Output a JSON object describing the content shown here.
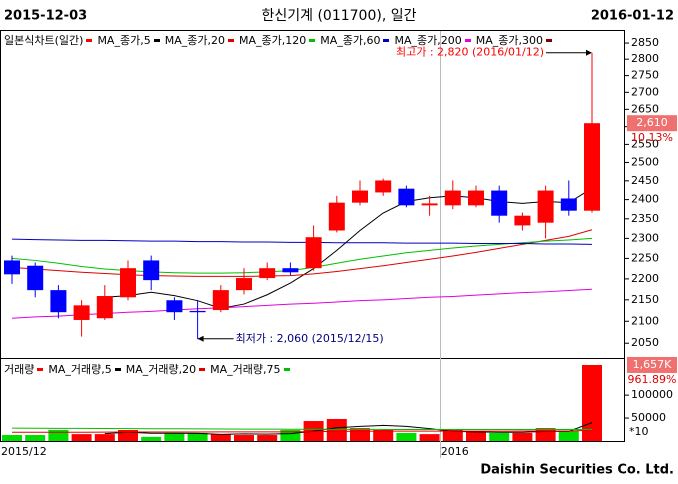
{
  "header": {
    "start_date": "2015-12-03",
    "title": "한신기계 (011700), 일간",
    "end_date": "2016-01-12"
  },
  "footer": "Daishin Securities Co. Ltd.",
  "chart_data": [
    {
      "type": "candlestick",
      "name": "일본식차트(일간)",
      "legend_color": "#ff0000",
      "up_color": "#ff0000",
      "down_color": "#0000ff",
      "categories": [
        "2015/12",
        null,
        null,
        null,
        null,
        null,
        null,
        null,
        null,
        null,
        null,
        null,
        null,
        null,
        null,
        null,
        null,
        null,
        null,
        "2016",
        null,
        null,
        null,
        null,
        null,
        null
      ],
      "open": [
        2245,
        2232,
        2173,
        2103,
        2107,
        2156,
        2245,
        2149,
        2124,
        2126,
        2173,
        2202,
        2226,
        2226,
        2320,
        2392,
        2419,
        2429,
        2385,
        2385,
        2385,
        2424,
        2333,
        2340,
        2403,
        2371
      ],
      "high": [
        2257,
        2240,
        2185,
        2149,
        2185,
        2245,
        2257,
        2156,
        2149,
        2185,
        2226,
        2240,
        2240,
        2333,
        2410,
        2451,
        2456,
        2437,
        2410,
        2451,
        2437,
        2437,
        2366,
        2437,
        2451,
        2820
      ],
      "low": [
        2188,
        2156,
        2107,
        2065,
        2103,
        2149,
        2173,
        2103,
        2060,
        2121,
        2163,
        2197,
        2209,
        2220,
        2315,
        2385,
        2410,
        2380,
        2358,
        2375,
        2380,
        2340,
        2320,
        2300,
        2358,
        2366
      ],
      "close": [
        2211,
        2173,
        2121,
        2137,
        2159,
        2226,
        2197,
        2121,
        2121,
        2173,
        2202,
        2226,
        2216,
        2303,
        2392,
        2424,
        2451,
        2385,
        2390,
        2424,
        2424,
        2358,
        2358,
        2424,
        2371,
        2610
      ],
      "series": [
        {
          "name": "MA_종가,5",
          "color": "#000000",
          "values": [
            null,
            null,
            null,
            null,
            2156,
            2160,
            2168,
            2160,
            2148,
            2130,
            2140,
            2162,
            2190,
            2225,
            2270,
            2320,
            2365,
            2395,
            2405,
            2410,
            2405,
            2395,
            2390,
            2395,
            2392,
            2430
          ]
        },
        {
          "name": "MA_종가,20",
          "color": "#e00000",
          "values": [
            2228,
            2224,
            2220,
            2216,
            2213,
            2210,
            2208,
            2207,
            2206,
            2206,
            2206,
            2207,
            2208,
            2212,
            2218,
            2225,
            2232,
            2240,
            2248,
            2256,
            2265,
            2275,
            2285,
            2295,
            2305,
            2322
          ]
        },
        {
          "name": "MA_종가,120",
          "color": "#00c000",
          "values": [
            2250,
            2245,
            2238,
            2230,
            2224,
            2220,
            2217,
            2215,
            2214,
            2214,
            2215,
            2217,
            2220,
            2228,
            2238,
            2248,
            2256,
            2264,
            2270,
            2276,
            2281,
            2285,
            2289,
            2293,
            2296,
            2300
          ]
        },
        {
          "name": "MA_종가,60",
          "color": "#0000c0",
          "values": [
            2298,
            2297,
            2296,
            2295,
            2295,
            2294,
            2293,
            2293,
            2292,
            2292,
            2291,
            2291,
            2290,
            2290,
            2289,
            2289,
            2289,
            2288,
            2288,
            2288,
            2287,
            2287,
            2287,
            2286,
            2286,
            2285
          ]
        },
        {
          "name": "MA_종가,200",
          "color": "#e000e0",
          "values": [
            2107,
            2110,
            2112,
            2115,
            2118,
            2121,
            2123,
            2126,
            2129,
            2131,
            2134,
            2137,
            2140,
            2142,
            2145,
            2148,
            2150,
            2153,
            2156,
            2158,
            2161,
            2164,
            2167,
            2169,
            2172,
            2175
          ]
        },
        {
          "name": "MA_종가,300",
          "color": "#800000",
          "values": [
            null,
            null,
            null,
            null,
            null,
            null,
            null,
            null,
            null,
            null,
            null,
            null,
            null,
            null,
            null,
            null,
            null,
            null,
            null,
            null,
            null,
            null,
            null,
            null,
            null,
            null
          ]
        }
      ],
      "log": true,
      "ylim": [
        2017,
        2888
      ],
      "yticks": [
        2050,
        2100,
        2150,
        2200,
        2250,
        2300,
        2350,
        2400,
        2450,
        2500,
        2550,
        2600,
        2650,
        2700,
        2750,
        2800,
        2850
      ],
      "last_price": {
        "value": 2610,
        "label": "2,610"
      },
      "change_label": "10.13%",
      "annotations": [
        {
          "text": "최고가 : 2,820 (2016/01/12)",
          "value": 2820,
          "color": "#ff0000"
        },
        {
          "text": "최저가 : 2,060 (2015/12/15)",
          "value": 2060,
          "color": "#000080"
        }
      ]
    },
    {
      "type": "bar",
      "name": "거래량",
      "legend_color": "#ff0000",
      "up_color": "#ff0000",
      "down_color": "#00dd00",
      "values": [
        130000,
        130000,
        240000,
        150000,
        150000,
        240000,
        90000,
        175000,
        175000,
        150000,
        130000,
        130000,
        240000,
        435000,
        480000,
        280000,
        240000,
        175000,
        150000,
        240000,
        200000,
        175000,
        175000,
        280000,
        220000,
        1657000
      ],
      "series": [
        {
          "name": "MA_거래량,5",
          "color": "#000000",
          "values": [
            null,
            null,
            null,
            null,
            160000,
            190000,
            170000,
            170000,
            165000,
            145000,
            155000,
            150000,
            160000,
            215000,
            290000,
            320000,
            340000,
            320000,
            270000,
            210000,
            200000,
            190000,
            190000,
            210000,
            210000,
            400000
          ]
        },
        {
          "name": "MA_거래량,20",
          "color": "#e00000",
          "values": [
            190000,
            190000,
            192000,
            192000,
            193000,
            195000,
            195000,
            196000,
            197000,
            198000,
            198000,
            199000,
            200000,
            205000,
            210000,
            212000,
            214000,
            215000,
            215000,
            216000,
            216000,
            216000,
            217000,
            218000,
            219000,
            235000
          ]
        },
        {
          "name": "MA_거래량,75",
          "color": "#00c000",
          "values": [
            280000,
            278000,
            276000,
            274000,
            272000,
            270000,
            268000,
            266000,
            264000,
            262000,
            260000,
            258000,
            256000,
            255000,
            254000,
            253000,
            252000,
            251000,
            250000,
            250000,
            250000,
            250000,
            250000,
            250000,
            250000,
            252000
          ]
        }
      ],
      "ylim": [
        0,
        1700000
      ],
      "yticks": [
        {
          "value": 500000,
          "label": "50000"
        },
        {
          "value": 1000000,
          "label": "100000"
        }
      ],
      "multiplier_label": "*10",
      "last_value": {
        "value": 1657000,
        "label": "1,657K"
      },
      "change_label": "961.89%"
    }
  ]
}
